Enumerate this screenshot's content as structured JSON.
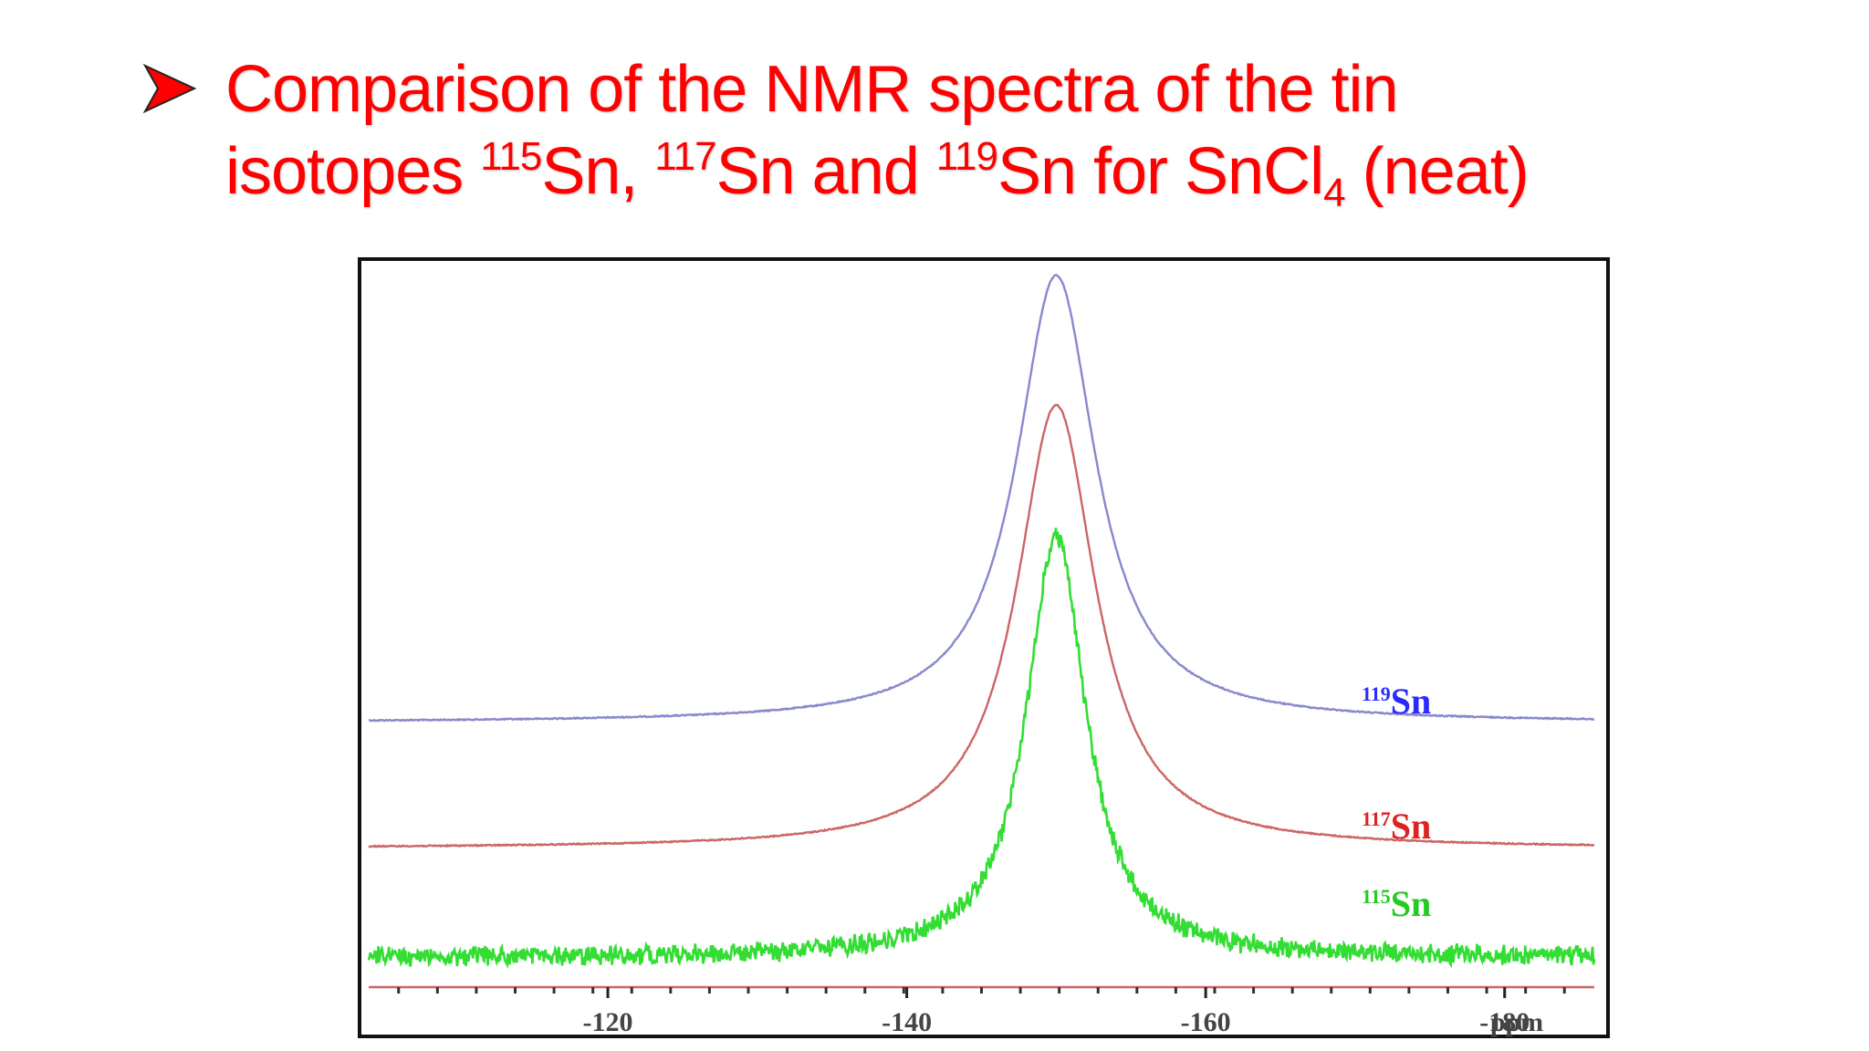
{
  "slide": {
    "title_line1": "Comparison of the NMR spectra of the tin",
    "title_line2_parts": {
      "p1": "isotopes ",
      "sup1": "115",
      "p2": "Sn, ",
      "sup2": "117",
      "p3": "Sn and ",
      "sup3": "119",
      "p4": "Sn for SnCl",
      "sub1": "4",
      "p5": " (neat)"
    },
    "title_color": "#ff0000",
    "bullet_icon": "arrowhead-bullet-icon"
  },
  "chart_data": {
    "type": "line",
    "xlabel": "ppm",
    "x_ticks": [
      "-120",
      "-140",
      "-160",
      "-180"
    ],
    "x_tick_values": [
      -120,
      -140,
      -160,
      -180
    ],
    "xlim": [
      -104,
      -186
    ],
    "peak_position": -150,
    "y_axis": "none",
    "grid": false,
    "series": [
      {
        "name": "119Sn",
        "label_sup": "119",
        "label_base": "Sn",
        "color": "#2b2bff",
        "line_color": "#8888cc",
        "baseline": 0.0,
        "peak_height": 1.0,
        "noise": "low"
      },
      {
        "name": "117Sn",
        "label_sup": "117",
        "label_base": "Sn",
        "color": "#dd2222",
        "line_color": "#cc6666",
        "baseline": 0.0,
        "peak_height": 1.0,
        "noise": "low"
      },
      {
        "name": "115Sn",
        "label_sup": "115",
        "label_base": "Sn",
        "color": "#22cc22",
        "line_color": "#33dd33",
        "baseline": 0.0,
        "peak_height": 1.0,
        "noise": "high"
      }
    ]
  }
}
